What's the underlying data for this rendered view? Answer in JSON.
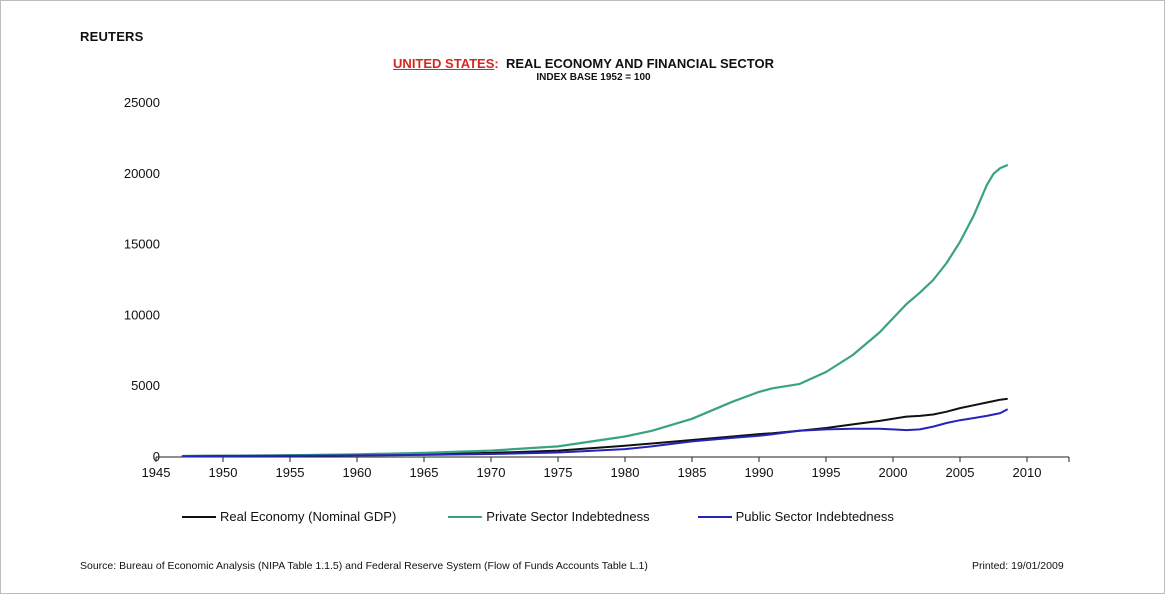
{
  "brand": "REUTERS",
  "title": {
    "country": "UNITED STATES",
    "separator": ":",
    "text": "REAL ECONOMY AND FINANCIAL SECTOR"
  },
  "subtitle": "INDEX BASE 1952 = 100",
  "footer": {
    "source": "Source:  Bureau of Economic Analysis (NIPA Table 1.1.5) and Federal Reserve System (Flow of Funds Accounts Table L.1)",
    "printed": "Printed:  19/01/2009"
  },
  "chart_data": {
    "type": "line",
    "title": "UNITED STATES: REAL ECONOMY AND FINANCIAL SECTOR",
    "subtitle": "INDEX BASE 1952 = 100",
    "xlabel": "",
    "ylabel": "",
    "xlim": [
      1945,
      2010
    ],
    "ylim": [
      0,
      25000
    ],
    "x_ticks": [
      1945,
      1950,
      1955,
      1960,
      1965,
      1970,
      1975,
      1980,
      1985,
      1990,
      1995,
      2000,
      2005,
      2010
    ],
    "y_ticks": [
      0,
      5000,
      10000,
      15000,
      20000,
      25000
    ],
    "grid": false,
    "legend_position": "bottom",
    "x": [
      1947,
      1950,
      1955,
      1960,
      1965,
      1970,
      1975,
      1980,
      1982,
      1985,
      1988,
      1990,
      1991,
      1993,
      1995,
      1997,
      1999,
      2000,
      2001,
      2002,
      2003,
      2004,
      2005,
      2006,
      2007,
      2007.5,
      2008,
      2008.5
    ],
    "series": [
      {
        "name": "Real Economy (Nominal GDP)",
        "color": "#111111",
        "values": [
          70,
          85,
          115,
          150,
          200,
          290,
          450,
          800,
          950,
          1200,
          1450,
          1620,
          1680,
          1850,
          2050,
          2300,
          2550,
          2700,
          2850,
          2900,
          3000,
          3200,
          3450,
          3650,
          3850,
          3950,
          4050,
          4100
        ]
      },
      {
        "name": "Private Sector Indebtedness",
        "color": "#3aa27e",
        "values": [
          70,
          90,
          130,
          190,
          290,
          450,
          750,
          1450,
          1850,
          2700,
          3900,
          4600,
          4850,
          5150,
          6000,
          7200,
          8800,
          9800,
          10800,
          11600,
          12500,
          13700,
          15200,
          17000,
          19200,
          20000,
          20400,
          20600
        ]
      },
      {
        "name": "Public Sector Indebtedness",
        "color": "#2424b8",
        "values": [
          60,
          70,
          85,
          110,
          150,
          210,
          320,
          560,
          750,
          1100,
          1350,
          1500,
          1600,
          1850,
          1950,
          2000,
          2000,
          1950,
          1900,
          1950,
          2150,
          2400,
          2600,
          2750,
          2900,
          3000,
          3100,
          3350
        ]
      }
    ]
  }
}
